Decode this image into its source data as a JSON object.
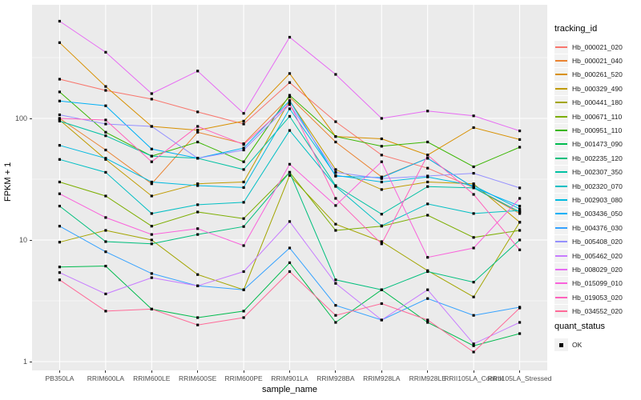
{
  "chart_data": {
    "type": "line",
    "title": "",
    "xlabel": "sample_name",
    "ylabel": "FPKM + 1",
    "y_scale": "log10",
    "y_ticks": [
      1,
      10,
      100
    ],
    "y_minor_ticks": [
      3.162,
      31.62,
      316.2
    ],
    "ylim": [
      0.85,
      860
    ],
    "grid": true,
    "legend_position": "right",
    "panel_bg": "#EBEBEB",
    "grid_color": "#FFFFFF",
    "point_color": "#000000",
    "axis_text_color": "#4D4D4D",
    "categories": [
      "PB350LA",
      "RRIM600LA",
      "RRIM600LE",
      "RRIM600SE",
      "RRIM600PE",
      "RRIM901LA",
      "RRIM928BA",
      "RRIM928LA",
      "RRIM928LE",
      "RRII105LA_Control",
      "RRII105LA_Stressed"
    ],
    "series": [
      {
        "name": "Hb_000021_020",
        "color": "#F8766D",
        "values": [
          210,
          170,
          144,
          113,
          90,
          197,
          94,
          50,
          39,
          27,
          17
        ]
      },
      {
        "name": "Hb_000021_040",
        "color": "#EA8331",
        "values": [
          100,
          55,
          29,
          77,
          62,
          150,
          64,
          33,
          47,
          27,
          16.5
        ]
      },
      {
        "name": "Hb_000261_520",
        "color": "#D89000",
        "values": [
          420,
          183,
          86,
          80,
          95,
          234,
          71,
          68,
          50,
          84,
          67
        ]
      },
      {
        "name": "Hb_000329_490",
        "color": "#C09B00",
        "values": [
          97,
          46,
          23,
          29,
          30,
          140,
          38,
          26,
          30,
          29,
          14
        ]
      },
      {
        "name": "Hb_000441_180",
        "color": "#A3A500",
        "values": [
          9.6,
          12,
          10,
          5.2,
          3.9,
          34,
          13.5,
          9.7,
          5.6,
          3.4,
          14
        ]
      },
      {
        "name": "Hb_000671_110",
        "color": "#7CAE00",
        "values": [
          30,
          23,
          13,
          17,
          15,
          36,
          12,
          13,
          16,
          10.5,
          12
        ]
      },
      {
        "name": "Hb_000951_110",
        "color": "#39B600",
        "values": [
          165,
          77,
          49,
          64,
          44,
          155,
          71,
          59,
          64,
          40,
          58
        ]
      },
      {
        "name": "Hb_001473_090",
        "color": "#00BB4E",
        "values": [
          6.0,
          6.1,
          2.7,
          2.3,
          2.6,
          6.5,
          2.1,
          3.9,
          2.1,
          1.35,
          1.7
        ]
      },
      {
        "name": "Hb_002235_120",
        "color": "#00BF7D",
        "values": [
          19,
          9.7,
          9.3,
          11.1,
          12.9,
          36,
          4.7,
          3.9,
          5.5,
          4.5,
          10
        ]
      },
      {
        "name": "Hb_002307_350",
        "color": "#00C1A3",
        "values": [
          95,
          72,
          49,
          47,
          38,
          104,
          28,
          16.3,
          27.5,
          26.8,
          17
        ]
      },
      {
        "name": "Hb_002320_070",
        "color": "#00BFC4",
        "values": [
          46,
          36,
          16.5,
          19.5,
          20.4,
          79.5,
          27.6,
          13.1,
          19.8,
          16.5,
          17.5
        ]
      },
      {
        "name": "Hb_002903_080",
        "color": "#00BAE0",
        "values": [
          60,
          47,
          30,
          28,
          27,
          120,
          34,
          30,
          33,
          28,
          18
        ]
      },
      {
        "name": "Hb_003436_050",
        "color": "#00B0F6",
        "values": [
          139,
          127,
          56,
          47,
          57,
          140,
          33.5,
          32.6,
          47,
          27,
          19
        ]
      },
      {
        "name": "Hb_004376_030",
        "color": "#35A2FF",
        "values": [
          13,
          8,
          5.3,
          4.2,
          3.9,
          8.6,
          2.9,
          2.2,
          3.3,
          2.4,
          2.8
        ]
      },
      {
        "name": "Hb_005408_020",
        "color": "#9590FF",
        "values": [
          107,
          90,
          86,
          47,
          55,
          130,
          36,
          32,
          33.6,
          35.4,
          26.8
        ]
      },
      {
        "name": "Hb_005462_020",
        "color": "#C77CFF",
        "values": [
          5.4,
          3.6,
          4.9,
          4.2,
          5.5,
          14.2,
          4.4,
          2.2,
          3.9,
          1.4,
          2.1
        ]
      },
      {
        "name": "Hb_008029_020",
        "color": "#E76BF3",
        "values": [
          630,
          350,
          160,
          245,
          110,
          465,
          230,
          100,
          115,
          105,
          79
        ]
      },
      {
        "name": "Hb_015099_010",
        "color": "#FA62DB",
        "values": [
          24,
          15.3,
          11.1,
          12.4,
          9.0,
          42,
          19.2,
          44,
          7.2,
          8.6,
          22
        ]
      },
      {
        "name": "Hb_019053_020",
        "color": "#FF62BC",
        "values": [
          100,
          97,
          44,
          86,
          61,
          133,
          22,
          9.3,
          50,
          23.7,
          8.3
        ]
      },
      {
        "name": "Hb_034552_020",
        "color": "#FF6A98",
        "values": [
          4.7,
          2.6,
          2.7,
          2.0,
          2.3,
          5.5,
          2.4,
          3.0,
          2.2,
          1.2,
          2.76
        ]
      }
    ],
    "legend": {
      "title": "tracking_id"
    },
    "legend2": {
      "title": "quant_status",
      "items": [
        {
          "label": "OK",
          "marker": "black-square"
        }
      ]
    }
  }
}
